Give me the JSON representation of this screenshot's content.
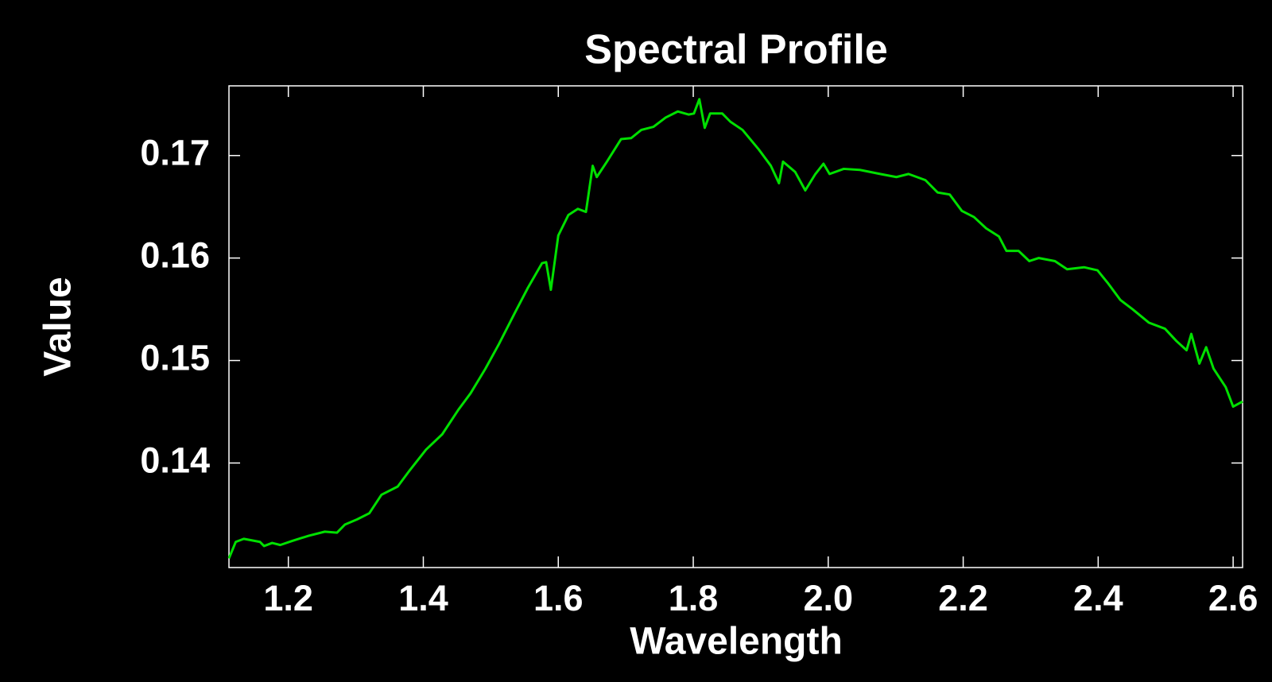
{
  "chart_data": {
    "type": "line",
    "title": "Spectral Profile",
    "x_label": "Wavelength",
    "y_label": "Value",
    "xlim": [
      1.112,
      2.614
    ],
    "ylim": [
      0.1298,
      0.1768
    ],
    "xticks": [
      1.2,
      1.4,
      1.6,
      1.8,
      {
        "value": 2,
        "label": "2.0"
      },
      2.2,
      2.4,
      2.6
    ],
    "yticks": [
      0.14,
      0.15,
      0.16,
      0.17
    ],
    "series": [
      {
        "color": "#00e000",
        "x": [
          1.112,
          1.122,
          1.134,
          1.158,
          1.164,
          1.176,
          1.188,
          1.206,
          1.23,
          1.254,
          1.272,
          1.284,
          1.302,
          1.32,
          1.338,
          1.362,
          1.38,
          1.404,
          1.428,
          1.452,
          1.47,
          1.492,
          1.512,
          1.536,
          1.555,
          1.576,
          1.582,
          1.589,
          1.6,
          1.615,
          1.629,
          1.641,
          1.651,
          1.657,
          1.672,
          1.693,
          1.708,
          1.723,
          1.741,
          1.759,
          1.777,
          1.793,
          1.801,
          1.809,
          1.817,
          1.825,
          1.843,
          1.855,
          1.873,
          1.897,
          1.915,
          1.927,
          1.933,
          1.951,
          1.966,
          1.981,
          1.993,
          2.002,
          2.023,
          2.047,
          2.077,
          2.101,
          2.119,
          2.144,
          2.162,
          2.18,
          2.198,
          2.216,
          2.234,
          2.253,
          2.264,
          2.282,
          2.298,
          2.312,
          2.336,
          2.354,
          2.379,
          2.399,
          2.415,
          2.433,
          2.451,
          2.475,
          2.499,
          2.516,
          2.531,
          2.538,
          2.55,
          2.56,
          2.571,
          2.589,
          2.6,
          2.614
        ],
        "values": [
          0.1307,
          0.1323,
          0.1326,
          0.1323,
          0.1319,
          0.1322,
          0.132,
          0.1324,
          0.1329,
          0.1333,
          0.1332,
          0.134,
          0.1345,
          0.1351,
          0.1369,
          0.1377,
          0.1393,
          0.1413,
          0.1428,
          0.1452,
          0.1468,
          0.1492,
          0.1516,
          0.1547,
          0.1571,
          0.1595,
          0.1596,
          0.1569,
          0.1622,
          0.1642,
          0.1648,
          0.1645,
          0.169,
          0.1679,
          0.1694,
          0.1716,
          0.1717,
          0.1725,
          0.1728,
          0.1737,
          0.1743,
          0.174,
          0.1741,
          0.1755,
          0.1727,
          0.1741,
          0.1741,
          0.1733,
          0.1725,
          0.1706,
          0.169,
          0.1673,
          0.1694,
          0.1684,
          0.1666,
          0.1682,
          0.1692,
          0.1682,
          0.1687,
          0.1686,
          0.1682,
          0.1679,
          0.1682,
          0.1676,
          0.1664,
          0.1662,
          0.1646,
          0.164,
          0.1629,
          0.1621,
          0.1607,
          0.1607,
          0.1597,
          0.16,
          0.1597,
          0.1589,
          0.1591,
          0.1588,
          0.1575,
          0.1559,
          0.155,
          0.1537,
          0.1531,
          0.1519,
          0.151,
          0.1526,
          0.1497,
          0.1513,
          0.1492,
          0.1474,
          0.1455,
          0.146
        ]
      }
    ]
  }
}
